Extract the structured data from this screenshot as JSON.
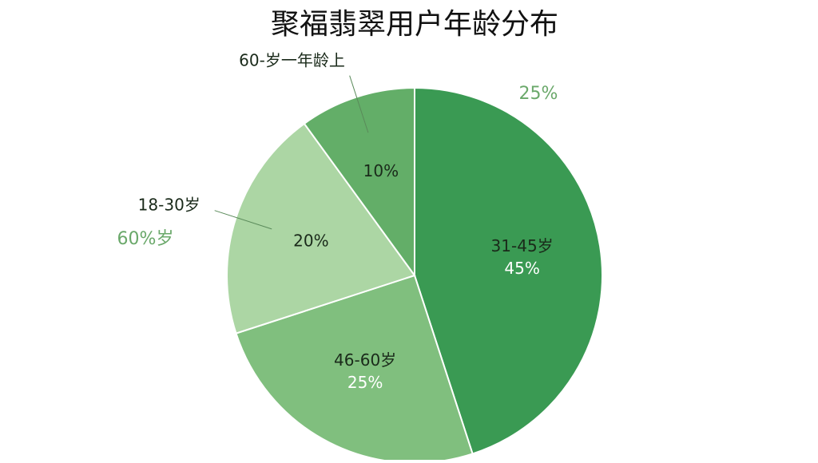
{
  "chart_data": {
    "type": "pie",
    "title": "聚福翡翠用户年龄分布",
    "categories": [
      "31-45岁",
      "46-60岁",
      "18-30岁",
      "60-岁一年龄上"
    ],
    "values": [
      45,
      25,
      20,
      10
    ],
    "value_labels": [
      "45%",
      "25%",
      "20%",
      "10%"
    ],
    "colors": [
      "#3a9a53",
      "#80bf7e",
      "#acd6a4",
      "#63ae68"
    ],
    "annotations": [
      "25%",
      "60%岁"
    ]
  }
}
